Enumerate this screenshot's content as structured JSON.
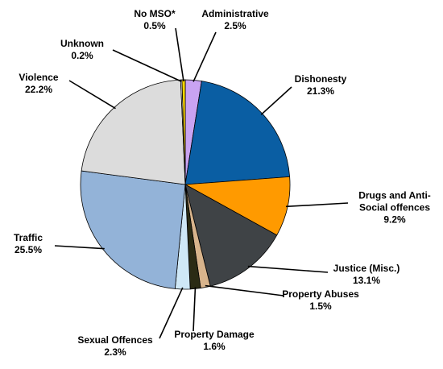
{
  "chart_data": {
    "type": "pie",
    "categories": [
      "Administrative",
      "Dishonesty",
      "Drugs and Anti-Social offences",
      "Justice (Misc.)",
      "Property Abuses",
      "Property Damage",
      "Sexual Offences",
      "Traffic",
      "Violence",
      "Unknown",
      "No MSO*"
    ],
    "values": [
      2.5,
      21.3,
      9.2,
      13.1,
      1.5,
      1.6,
      2.3,
      25.5,
      22.2,
      0.2,
      0.5
    ],
    "value_labels": [
      "2.5%",
      "21.3%",
      "9.2%",
      "13.1%",
      "1.5%",
      "1.6%",
      "2.3%",
      "25.5%",
      "22.2%",
      "0.2%",
      "0.5%"
    ],
    "colors": [
      "#c9a3f2",
      "#0a5ea3",
      "#ff9a00",
      "#3f4346",
      "#d8b48c",
      "#2b2b14",
      "#cfe8f7",
      "#93b3d8",
      "#dcdcdc",
      "#ffffff",
      "#ffd700"
    ]
  }
}
